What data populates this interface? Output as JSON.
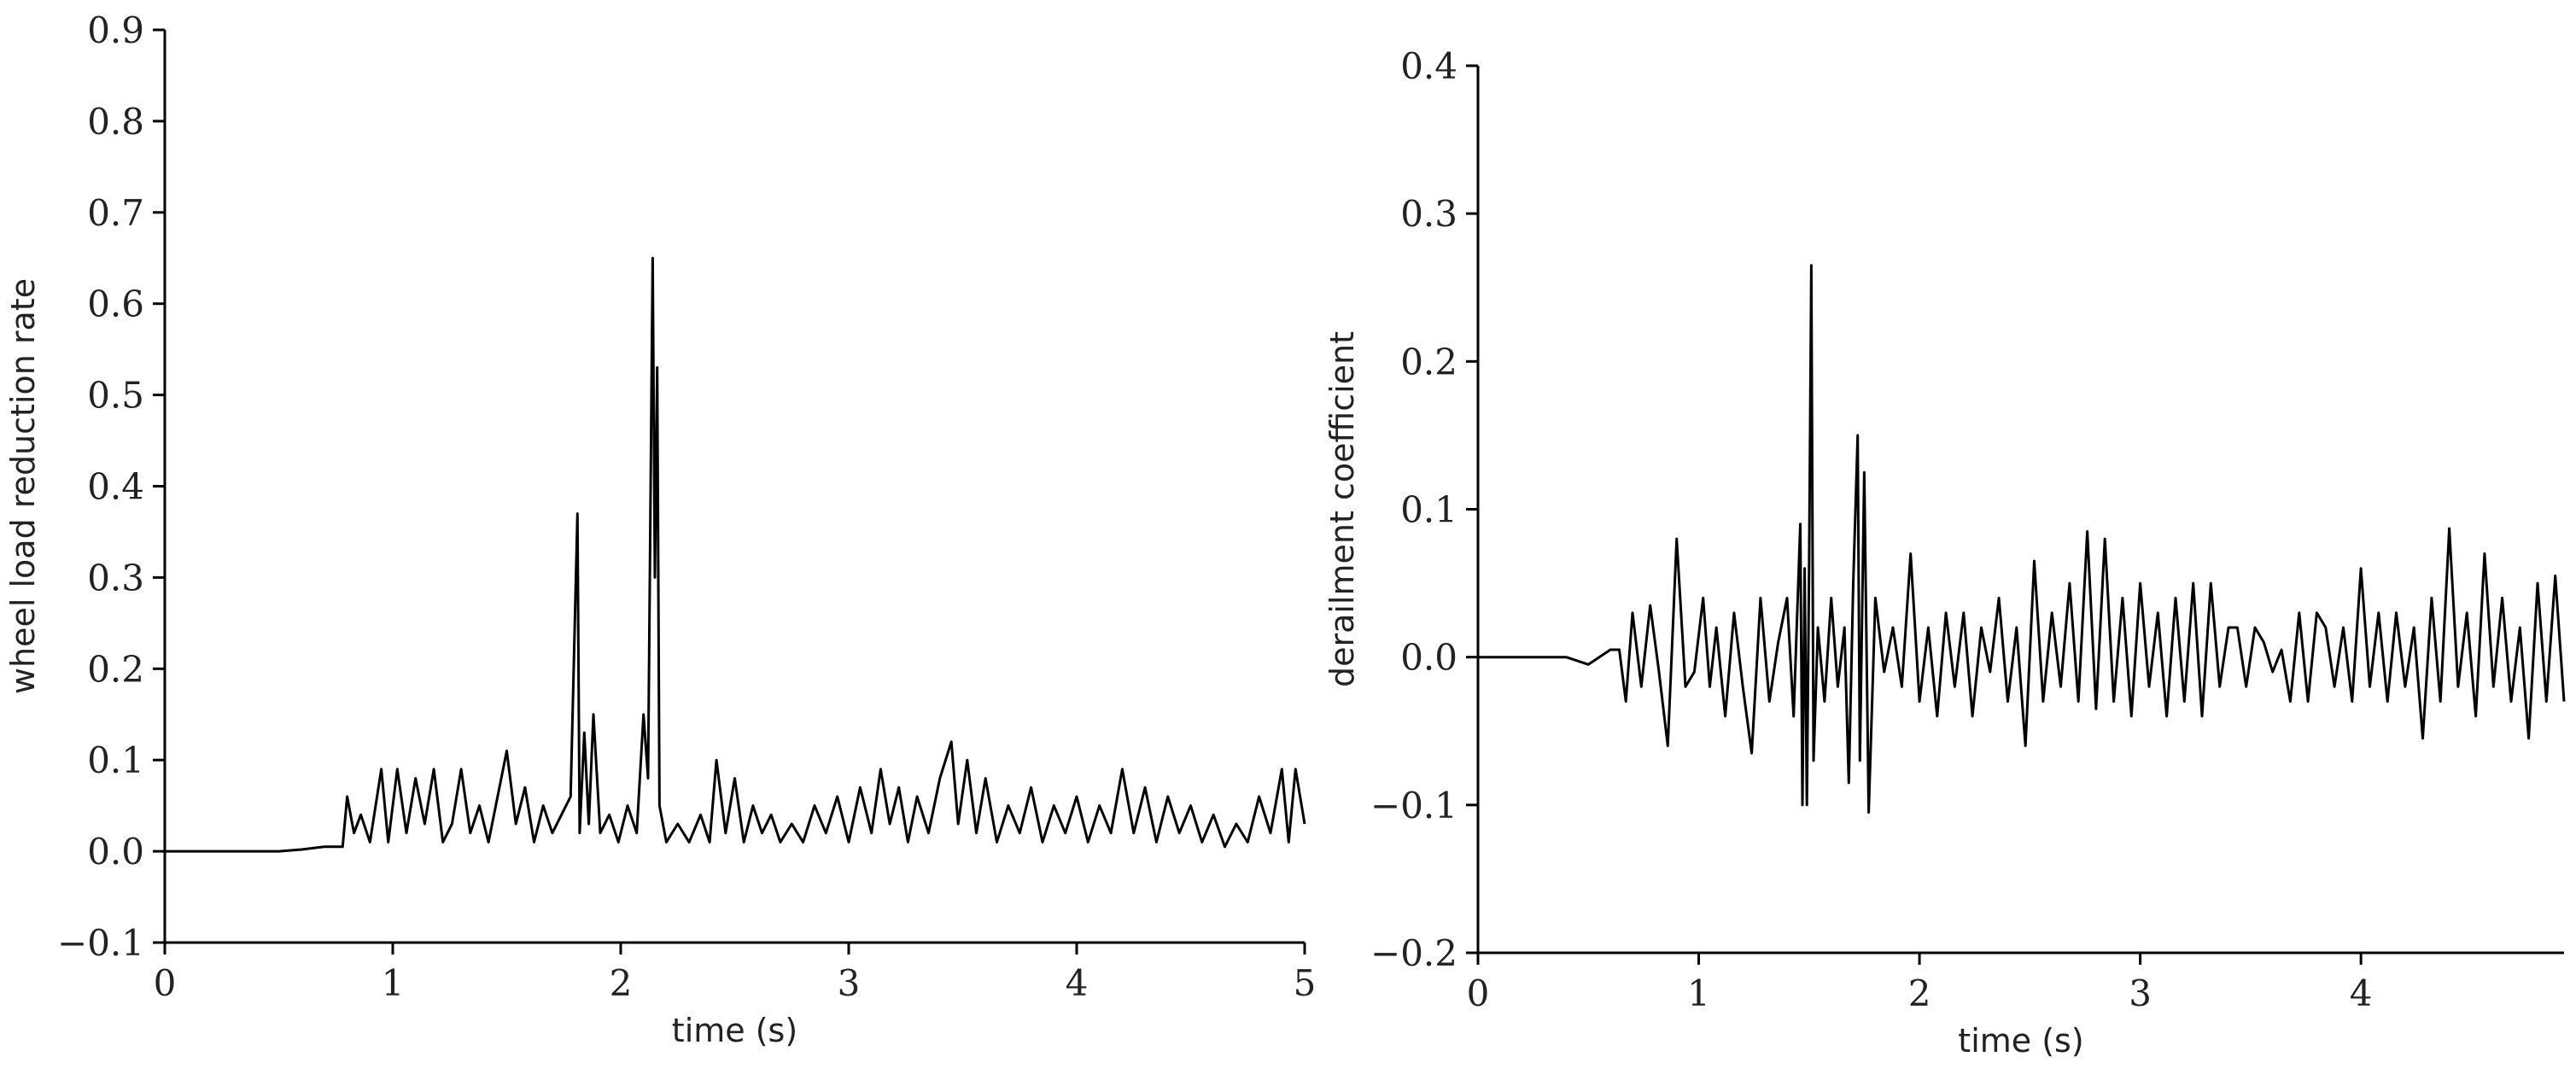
{
  "chart_data": [
    {
      "type": "line",
      "xlabel": "time (s)",
      "ylabel": "wheel load reduction rate",
      "xlim": [
        0,
        5
      ],
      "xticks": [
        0,
        1,
        2,
        3,
        4,
        5
      ],
      "ylim": [
        -0.1,
        0.9
      ],
      "yticks": [
        {
          "value": -0.1,
          "label": "−0.1"
        },
        {
          "value": 0,
          "label": "0.0"
        },
        0.1,
        0.2,
        0.3,
        0.4,
        0.5,
        0.6,
        0.7,
        0.8,
        0.9
      ],
      "x": [
        0,
        0.5,
        0.6,
        0.7,
        0.78,
        0.8,
        0.83,
        0.86,
        0.9,
        0.95,
        0.98,
        1.02,
        1.06,
        1.1,
        1.14,
        1.18,
        1.22,
        1.26,
        1.3,
        1.34,
        1.38,
        1.42,
        1.46,
        1.5,
        1.54,
        1.58,
        1.62,
        1.66,
        1.7,
        1.74,
        1.78,
        1.81,
        1.82,
        1.84,
        1.86,
        1.88,
        1.91,
        1.95,
        1.99,
        2.03,
        2.07,
        2.1,
        2.12,
        2.14,
        2.15,
        2.16,
        2.17,
        2.2,
        2.25,
        2.3,
        2.35,
        2.39,
        2.42,
        2.46,
        2.5,
        2.54,
        2.58,
        2.62,
        2.66,
        2.7,
        2.75,
        2.8,
        2.85,
        2.9,
        2.95,
        3.0,
        3.05,
        3.1,
        3.14,
        3.18,
        3.22,
        3.26,
        3.3,
        3.35,
        3.4,
        3.45,
        3.48,
        3.52,
        3.56,
        3.6,
        3.65,
        3.7,
        3.75,
        3.8,
        3.85,
        3.9,
        3.95,
        4.0,
        4.05,
        4.1,
        4.15,
        4.2,
        4.25,
        4.3,
        4.35,
        4.4,
        4.45,
        4.5,
        4.55,
        4.6,
        4.65,
        4.7,
        4.75,
        4.8,
        4.85,
        4.9,
        4.93,
        4.96,
        5.0
      ],
      "series": [
        {
          "name": "wheel load reduction rate",
          "color": "#000000",
          "values": [
            0,
            0,
            0.002,
            0.005,
            0.005,
            0.06,
            0.02,
            0.04,
            0.01,
            0.09,
            0.01,
            0.09,
            0.02,
            0.08,
            0.03,
            0.09,
            0.01,
            0.03,
            0.09,
            0.02,
            0.05,
            0.01,
            0.06,
            0.11,
            0.03,
            0.07,
            0.01,
            0.05,
            0.02,
            0.04,
            0.06,
            0.37,
            0.02,
            0.13,
            0.03,
            0.15,
            0.02,
            0.04,
            0.01,
            0.05,
            0.02,
            0.15,
            0.08,
            0.65,
            0.3,
            0.53,
            0.05,
            0.01,
            0.03,
            0.01,
            0.04,
            0.01,
            0.1,
            0.02,
            0.08,
            0.01,
            0.05,
            0.02,
            0.04,
            0.01,
            0.03,
            0.01,
            0.05,
            0.02,
            0.06,
            0.01,
            0.07,
            0.02,
            0.09,
            0.03,
            0.07,
            0.01,
            0.06,
            0.02,
            0.08,
            0.12,
            0.03,
            0.1,
            0.02,
            0.08,
            0.01,
            0.05,
            0.02,
            0.07,
            0.01,
            0.05,
            0.02,
            0.06,
            0.01,
            0.05,
            0.02,
            0.09,
            0.02,
            0.07,
            0.01,
            0.06,
            0.02,
            0.05,
            0.01,
            0.04,
            0.005,
            0.03,
            0.01,
            0.06,
            0.02,
            0.09,
            0.01,
            0.09,
            0.03
          ]
        }
      ]
    },
    {
      "type": "line",
      "xlabel": "time (s)",
      "ylabel": "derailment coefficient",
      "xlim": [
        0,
        4.92
      ],
      "xticks": [
        0,
        1,
        2,
        3,
        4
      ],
      "ylim": [
        -0.2,
        0.4
      ],
      "yticks": [
        {
          "value": -0.2,
          "label": "−0.2"
        },
        {
          "value": -0.1,
          "label": "−0.1"
        },
        {
          "value": 0,
          "label": "0.0"
        },
        0.1,
        0.2,
        0.3,
        0.4
      ],
      "x": [
        0,
        0.4,
        0.5,
        0.6,
        0.64,
        0.67,
        0.7,
        0.74,
        0.78,
        0.82,
        0.86,
        0.9,
        0.94,
        0.98,
        1.02,
        1.05,
        1.08,
        1.12,
        1.16,
        1.2,
        1.24,
        1.28,
        1.32,
        1.36,
        1.4,
        1.43,
        1.46,
        1.47,
        1.48,
        1.49,
        1.5,
        1.51,
        1.52,
        1.54,
        1.57,
        1.6,
        1.63,
        1.66,
        1.68,
        1.7,
        1.72,
        1.73,
        1.75,
        1.77,
        1.8,
        1.84,
        1.88,
        1.92,
        1.96,
        2.0,
        2.04,
        2.08,
        2.12,
        2.16,
        2.2,
        2.24,
        2.28,
        2.32,
        2.36,
        2.4,
        2.44,
        2.48,
        2.52,
        2.56,
        2.6,
        2.64,
        2.68,
        2.72,
        2.76,
        2.8,
        2.84,
        2.88,
        2.92,
        2.96,
        3.0,
        3.04,
        3.08,
        3.12,
        3.16,
        3.2,
        3.24,
        3.28,
        3.32,
        3.36,
        3.4,
        3.44,
        3.48,
        3.52,
        3.56,
        3.6,
        3.64,
        3.68,
        3.72,
        3.76,
        3.8,
        3.84,
        3.88,
        3.92,
        3.96,
        4.0,
        4.04,
        4.08,
        4.12,
        4.16,
        4.2,
        4.24,
        4.28,
        4.32,
        4.36,
        4.4,
        4.44,
        4.48,
        4.52,
        4.56,
        4.6,
        4.64,
        4.68,
        4.72,
        4.76,
        4.8,
        4.84,
        4.88,
        4.92
      ],
      "series": [
        {
          "name": "derailment coefficient",
          "color": "#000000",
          "values": [
            0,
            0,
            -0.005,
            0.005,
            0.005,
            -0.03,
            0.03,
            -0.02,
            0.035,
            -0.01,
            -0.06,
            0.08,
            -0.02,
            -0.01,
            0.04,
            -0.02,
            0.02,
            -0.04,
            0.03,
            -0.02,
            -0.065,
            0.04,
            -0.03,
            0.01,
            0.04,
            -0.04,
            0.09,
            -0.1,
            0.06,
            -0.1,
            0.06,
            0.265,
            -0.07,
            0.02,
            -0.03,
            0.04,
            -0.02,
            0.02,
            -0.085,
            0.05,
            0.15,
            -0.07,
            0.125,
            -0.105,
            0.04,
            -0.01,
            0.02,
            -0.02,
            0.07,
            -0.03,
            0.02,
            -0.04,
            0.03,
            -0.02,
            0.03,
            -0.04,
            0.02,
            -0.01,
            0.04,
            -0.03,
            0.02,
            -0.06,
            0.065,
            -0.03,
            0.03,
            -0.02,
            0.05,
            -0.03,
            0.085,
            -0.035,
            0.08,
            -0.03,
            0.04,
            -0.04,
            0.05,
            -0.02,
            0.03,
            -0.04,
            0.04,
            -0.03,
            0.05,
            -0.04,
            0.05,
            -0.02,
            0.02,
            0.02,
            -0.02,
            0.02,
            0.01,
            -0.01,
            0.005,
            -0.03,
            0.03,
            -0.03,
            0.03,
            0.02,
            -0.02,
            0.02,
            -0.03,
            0.06,
            -0.02,
            0.03,
            -0.03,
            0.03,
            -0.02,
            0.02,
            -0.055,
            0.04,
            -0.03,
            0.087,
            -0.02,
            0.03,
            -0.04,
            0.07,
            -0.02,
            0.04,
            -0.03,
            0.02,
            -0.055,
            0.05,
            -0.03,
            0.055,
            -0.03
          ]
        }
      ]
    }
  ]
}
